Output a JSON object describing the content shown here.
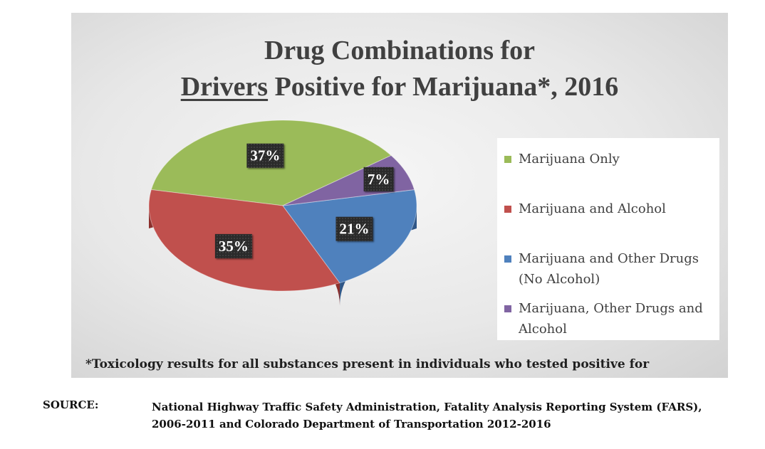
{
  "chart_data": {
    "type": "pie",
    "title_line1": "Drug Combinations for",
    "title_line2_underlined": "Drivers",
    "title_line2_rest": " Positive for Marijuana*, 2016",
    "slices": [
      {
        "name": "Marijuana Only",
        "value": 37,
        "label": "37%",
        "color": "#9bbb59",
        "side": "#6f8a3a"
      },
      {
        "name": "Marijuana and Alcohol",
        "value": 35,
        "label": "35%",
        "color": "#c0504d",
        "side": "#8c2f2c"
      },
      {
        "name": "Marijuana and Other Drugs (No Alcohol)",
        "value": 21,
        "label": "21%",
        "color": "#4f81bd",
        "side": "#2f5687"
      },
      {
        "name": "Marijuana, Other Drugs and Alcohol",
        "value": 7,
        "label": "7%",
        "color": "#8064a2",
        "side": "#5a4277"
      }
    ],
    "legend_position": "right",
    "legend": [
      {
        "line1": "Marijuana Only",
        "line2": ""
      },
      {
        "line1": "Marijuana and Alcohol",
        "line2": ""
      },
      {
        "line1": "Marijuana and Other Drugs",
        "line2": "(No Alcohol)"
      },
      {
        "line1": "Marijuana, Other Drugs and",
        "line2": "Alcohol"
      }
    ],
    "footnote": "*Toxicology results for all substances present in individuals who tested positive for"
  },
  "source": {
    "label": "SOURCE:",
    "line1": "National Highway Traffic Safety Administration, Fatality Analysis Reporting System (FARS),",
    "line2": "2006-2011 and Colorado Department of Transportation 2012-2016"
  }
}
